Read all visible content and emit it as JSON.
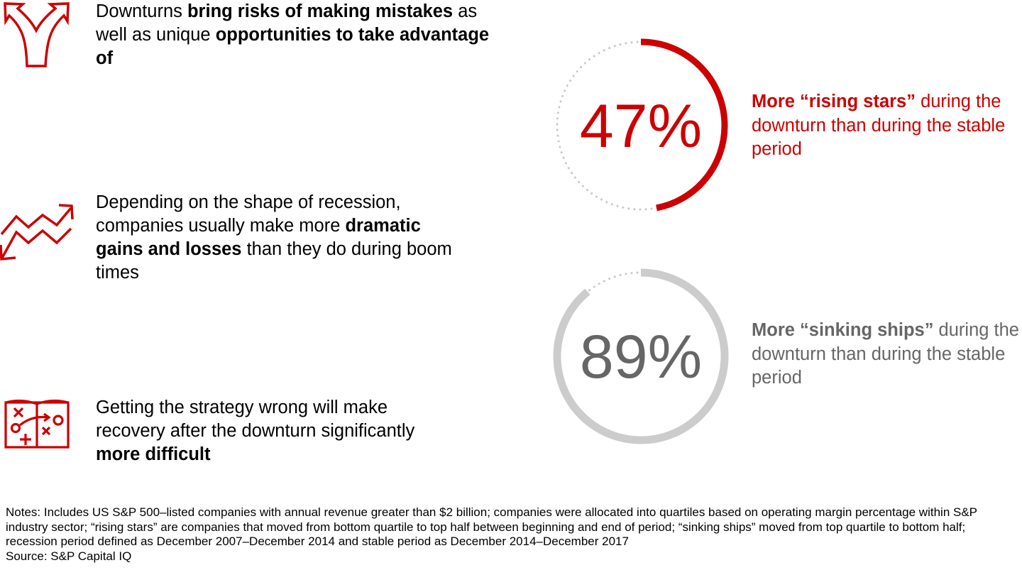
{
  "colors": {
    "accent": "#cc0000",
    "gray": "#cccccc",
    "gray_text": "#666666",
    "dots": "#c8c8c8"
  },
  "points": [
    {
      "icon": "diverging-arrows-icon",
      "parts": [
        {
          "t": "Downturns ",
          "b": false
        },
        {
          "t": "bring risks of making mistakes",
          "b": true
        },
        {
          "t": " as well as unique ",
          "b": false
        },
        {
          "t": "opportunities to take advantage of",
          "b": true
        }
      ]
    },
    {
      "icon": "zigzag-up-down-arrows-icon",
      "parts": [
        {
          "t": "Depending on the shape of recession, companies usually make more ",
          "b": false
        },
        {
          "t": "dramatic gains and losses",
          "b": true
        },
        {
          "t": " than they do during boom times",
          "b": false
        }
      ]
    },
    {
      "icon": "strategy-playbook-icon",
      "parts": [
        {
          "t": "Getting the strategy wrong will make recovery after the downturn significantly ",
          "b": false
        },
        {
          "t": "more difficult",
          "b": true
        }
      ]
    }
  ],
  "chart_data": [
    {
      "type": "pie",
      "style": "progress-ring",
      "value_percent": 47,
      "label": "47%",
      "color": "#cc0000",
      "caption_bold": "More “rising stars”",
      "caption_rest": " during the downturn than during the stable period"
    },
    {
      "type": "pie",
      "style": "progress-ring",
      "value_percent": 89,
      "label": "89%",
      "color": "#cccccc",
      "caption_bold": "More “sinking ships”",
      "caption_rest": " during the downturn than during the stable period"
    }
  ],
  "notes": {
    "text": "Notes: Includes US S&P 500–listed companies with annual revenue greater than $2 billion; companies were allocated into quartiles based on operating margin percentage within S&P industry sector; “rising stars” are companies that moved from bottom quartile to top half between beginning and end of period; “sinking ships” moved from top quartile to bottom half; recession period defined as December 2007–December 2014 and stable period as December 2014–December 2017",
    "source": "Source: S&P Capital IQ"
  }
}
